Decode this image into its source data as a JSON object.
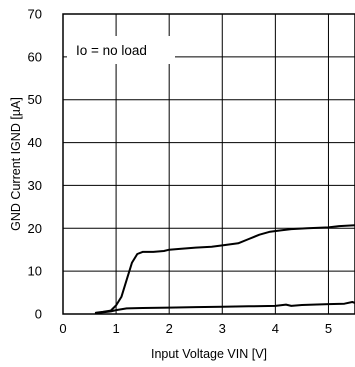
{
  "chart_data": {
    "type": "line",
    "xlabel": "Input Voltage VIN  [V]",
    "ylabel": "GND Current IGND  [µA]",
    "xlim": [
      0,
      5.5
    ],
    "ylim": [
      0,
      70
    ],
    "x_ticks": [
      "0",
      "1",
      "2",
      "3",
      "4",
      "5"
    ],
    "y_ticks": [
      "0",
      "10",
      "20",
      "30",
      "40",
      "50",
      "60",
      "70"
    ],
    "grid": true,
    "annotation": "Io = no load",
    "series": [
      {
        "points": [
          [
            0.62,
            0.3
          ],
          [
            0.75,
            0.5
          ],
          [
            0.9,
            0.8
          ],
          [
            1.0,
            2.0
          ],
          [
            1.1,
            4.0
          ],
          [
            1.2,
            8.0
          ],
          [
            1.3,
            12.0
          ],
          [
            1.4,
            14.0
          ],
          [
            1.5,
            14.5
          ],
          [
            1.7,
            14.5
          ],
          [
            1.9,
            14.7
          ],
          [
            2.0,
            15.0
          ],
          [
            2.2,
            15.2
          ],
          [
            2.5,
            15.5
          ],
          [
            2.8,
            15.7
          ],
          [
            3.0,
            16.0
          ],
          [
            3.3,
            16.5
          ],
          [
            3.5,
            17.5
          ],
          [
            3.7,
            18.5
          ],
          [
            3.9,
            19.2
          ],
          [
            4.1,
            19.5
          ],
          [
            4.3,
            19.8
          ],
          [
            4.6,
            20.0
          ],
          [
            5.0,
            20.2
          ],
          [
            5.2,
            20.5
          ],
          [
            5.5,
            20.7
          ]
        ]
      },
      {
        "points": [
          [
            0.62,
            0.2
          ],
          [
            0.9,
            0.6
          ],
          [
            1.0,
            0.9
          ],
          [
            1.1,
            1.1
          ],
          [
            1.2,
            1.3
          ],
          [
            1.5,
            1.4
          ],
          [
            2.0,
            1.5
          ],
          [
            2.5,
            1.6
          ],
          [
            3.0,
            1.7
          ],
          [
            3.5,
            1.8
          ],
          [
            4.0,
            1.9
          ],
          [
            4.2,
            2.2
          ],
          [
            4.3,
            1.9
          ],
          [
            4.5,
            2.1
          ],
          [
            5.0,
            2.3
          ],
          [
            5.3,
            2.4
          ],
          [
            5.45,
            2.8
          ],
          [
            5.5,
            2.6
          ]
        ]
      }
    ]
  }
}
